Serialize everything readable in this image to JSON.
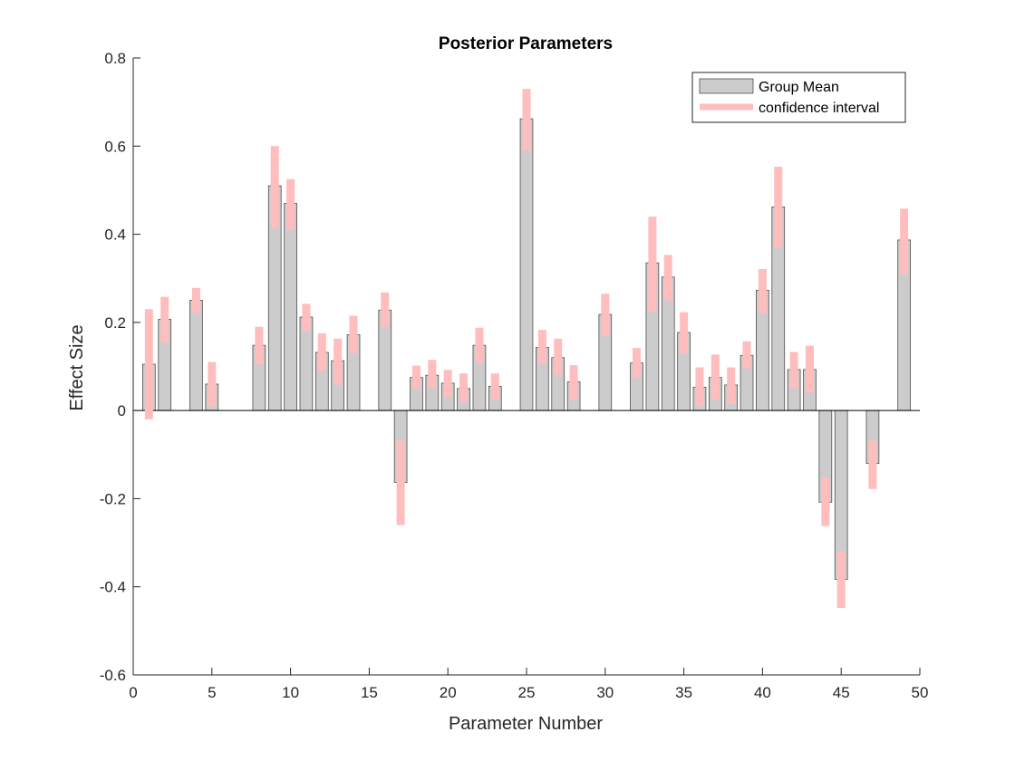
{
  "chart_data": {
    "type": "bar",
    "title": "Posterior Parameters",
    "xlabel": "Parameter Number",
    "ylabel": "Effect Size",
    "xlim": [
      0,
      50
    ],
    "ylim": [
      -0.6,
      0.8
    ],
    "xticks": [
      0,
      5,
      10,
      15,
      20,
      25,
      30,
      35,
      40,
      45,
      50
    ],
    "yticks": [
      -0.6,
      -0.4,
      -0.2,
      0,
      0.2,
      0.4,
      0.6,
      0.8
    ],
    "grid": false,
    "legend_position": "top-right",
    "series": [
      {
        "name": "Group Mean",
        "color": "#cccccc",
        "edge_color": "#4d4d4d",
        "x": [
          1,
          2,
          3,
          4,
          5,
          6,
          7,
          8,
          9,
          10,
          11,
          12,
          13,
          14,
          15,
          16,
          17,
          18,
          19,
          20,
          21,
          22,
          23,
          24,
          25,
          26,
          27,
          28,
          29,
          30,
          31,
          32,
          33,
          34,
          35,
          36,
          37,
          38,
          39,
          40,
          41,
          42,
          43,
          44,
          45,
          46,
          47,
          48,
          49
        ],
        "values": [
          0.105,
          0.207,
          0,
          0.25,
          0.06,
          0,
          0,
          0.148,
          0.51,
          0.47,
          0.212,
          0.132,
          0.113,
          0.172,
          0,
          0.228,
          -0.163,
          0.075,
          0.08,
          0.062,
          0.05,
          0.148,
          0.055,
          0,
          0.662,
          0.143,
          0.12,
          0.065,
          0,
          0.218,
          0,
          0.108,
          0.335,
          0.303,
          0.177,
          0.053,
          0.075,
          0.058,
          0.125,
          0.273,
          0.462,
          0.093,
          0.093,
          -0.208,
          -0.383,
          0,
          -0.12,
          0,
          0.387
        ]
      },
      {
        "name": "confidence interval",
        "color": "#ffbdbd",
        "x": [
          1,
          2,
          3,
          4,
          5,
          6,
          7,
          8,
          9,
          10,
          11,
          12,
          13,
          14,
          15,
          16,
          17,
          18,
          19,
          20,
          21,
          22,
          23,
          24,
          25,
          26,
          27,
          28,
          29,
          30,
          31,
          32,
          33,
          34,
          35,
          36,
          37,
          38,
          39,
          40,
          41,
          42,
          43,
          44,
          45,
          46,
          47,
          48,
          49
        ],
        "lower": [
          -0.02,
          0.155,
          null,
          0.222,
          0.01,
          null,
          null,
          0.105,
          0.415,
          0.41,
          0.18,
          0.09,
          0.058,
          0.13,
          null,
          0.19,
          -0.26,
          0.05,
          0.05,
          0.03,
          0.02,
          0.108,
          0.025,
          null,
          0.59,
          0.105,
          0.08,
          0.025,
          null,
          0.17,
          null,
          0.075,
          0.225,
          0.25,
          0.13,
          0.01,
          0.025,
          0.015,
          0.095,
          0.22,
          0.37,
          0.05,
          0.04,
          -0.262,
          -0.448,
          null,
          -0.178,
          null,
          0.31
        ],
        "upper": [
          0.23,
          0.258,
          null,
          0.278,
          0.11,
          null,
          null,
          0.19,
          0.6,
          0.525,
          0.242,
          0.175,
          0.163,
          0.215,
          null,
          0.268,
          -0.068,
          0.102,
          0.115,
          0.092,
          0.084,
          0.188,
          0.084,
          null,
          0.73,
          0.183,
          0.163,
          0.103,
          null,
          0.265,
          null,
          0.142,
          0.44,
          0.353,
          0.223,
          0.098,
          0.127,
          0.098,
          0.157,
          0.321,
          0.553,
          0.133,
          0.147,
          -0.152,
          -0.318,
          null,
          -0.068,
          null,
          0.458
        ]
      }
    ]
  }
}
